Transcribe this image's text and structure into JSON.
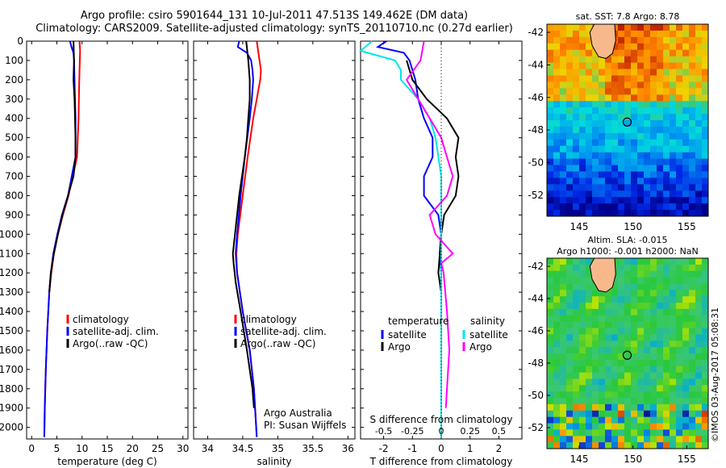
{
  "header": {
    "title_line1": "Argo profile: csiro 5901644_131 10-Jul-2011 47.513S 149.462E (DM data)",
    "title_line2": "Climatology: CARS2009. Satellite-adjusted climatology: synTS_20110710.nc (0.27d earlier)"
  },
  "chart_data": [
    {
      "id": "temperature",
      "type": "line",
      "xlabel": "temperature (deg C)",
      "ylabel": "",
      "xlim": [
        -1,
        31
      ],
      "ylim": [
        2060,
        0
      ],
      "xticks": [
        0,
        5,
        10,
        15,
        20,
        25,
        30
      ],
      "yticks": [
        0,
        100,
        200,
        300,
        400,
        500,
        600,
        700,
        800,
        900,
        1000,
        1100,
        1200,
        1300,
        1400,
        1500,
        1600,
        1700,
        1800,
        1900,
        2000
      ],
      "legend": [
        "climatology",
        "satellite-adj. clim.",
        "Argo(..raw -QC)"
      ],
      "series": [
        {
          "name": "climatology",
          "color": "#ff0000",
          "depth": [
            0,
            50,
            150,
            250,
            400,
            600,
            800,
            900,
            1000,
            1100,
            1200,
            1300,
            1500,
            1700,
            1900,
            2050
          ],
          "values": [
            9.5,
            9.6,
            9.5,
            9.4,
            9.3,
            9.0,
            7.3,
            6.2,
            5.2,
            4.4,
            3.9,
            3.5,
            3.1,
            2.8,
            2.6,
            2.5
          ]
        },
        {
          "name": "satellite-adj. clim.",
          "color": "#0000ff",
          "depth": [
            0,
            30,
            60,
            100,
            200,
            300,
            400,
            600,
            800,
            900,
            1000,
            1100,
            1200,
            1300,
            1500,
            1700,
            1900,
            2050
          ],
          "values": [
            7.6,
            7.9,
            8.3,
            8.4,
            8.5,
            8.6,
            8.7,
            8.7,
            7.2,
            6.0,
            5.1,
            4.3,
            3.8,
            3.5,
            3.1,
            2.8,
            2.6,
            2.5
          ]
        },
        {
          "name": "Argo(..raw -QC)",
          "color": "#000000",
          "depth": [
            0,
            100,
            200,
            300,
            400,
            500,
            600,
            700,
            800,
            900,
            1000,
            1100,
            1200,
            1300
          ],
          "values": [
            8.3,
            8.4,
            8.3,
            8.5,
            8.6,
            8.7,
            8.7,
            8.3,
            7.2,
            6.1,
            5.2,
            4.4,
            3.8,
            3.5
          ]
        }
      ]
    },
    {
      "id": "salinity",
      "type": "line",
      "xlabel": "salinity",
      "xlim": [
        33.8,
        36.1
      ],
      "ylim": [
        2060,
        0
      ],
      "xticks": [
        34,
        34.5,
        35,
        35.5,
        36
      ],
      "legend": [
        "climatology",
        "satellite-adj. clim.",
        "Argo(..raw -QC)"
      ],
      "annotation": [
        "Argo Australia",
        "PI: Susan Wijffels"
      ],
      "series": [
        {
          "name": "climatology",
          "color": "#ff0000",
          "depth": [
            0,
            50,
            100,
            150,
            200,
            300,
            400,
            600,
            800,
            1000,
            1100,
            1200,
            1400,
            1600,
            1800,
            2050
          ],
          "values": [
            34.7,
            34.72,
            34.74,
            34.76,
            34.75,
            34.7,
            34.65,
            34.57,
            34.5,
            34.43,
            34.41,
            34.42,
            34.5,
            34.6,
            34.66,
            34.7
          ]
        },
        {
          "name": "satellite-adj. clim.",
          "color": "#0000ff",
          "depth": [
            0,
            30,
            60,
            100,
            150,
            200,
            300,
            400,
            600,
            800,
            1000,
            1100,
            1200,
            1400,
            1600,
            1800,
            2050
          ],
          "values": [
            34.45,
            34.43,
            34.56,
            34.62,
            34.64,
            34.65,
            34.63,
            34.6,
            34.53,
            34.47,
            34.42,
            34.4,
            34.42,
            34.5,
            34.6,
            34.66,
            34.7
          ]
        },
        {
          "name": "Argo(..raw -QC)",
          "color": "#000000",
          "depth": [
            0,
            100,
            200,
            300,
            400,
            500,
            600,
            700,
            800,
            900,
            1000,
            1100,
            1150,
            1250,
            1400,
            1600,
            1800,
            1900
          ],
          "values": [
            34.55,
            34.58,
            34.6,
            34.6,
            34.58,
            34.56,
            34.53,
            34.49,
            34.45,
            34.42,
            34.39,
            34.36,
            34.37,
            34.4,
            34.47,
            34.56,
            34.64,
            34.66
          ]
        }
      ]
    },
    {
      "id": "difference",
      "type": "line",
      "xlabel": "T difference from climatology",
      "xlabel_top": "S difference from climatology",
      "xlim": [
        -2.8,
        2.8
      ],
      "ylim": [
        2060,
        0
      ],
      "xticks": [
        -2,
        -1,
        0,
        1,
        2
      ],
      "s_ticks": [
        -0.5,
        -0.25,
        0,
        0.25,
        0.5
      ],
      "legend_groups": {
        "temperature": [
          "satellite",
          "Argo"
        ],
        "salinity": [
          "satellite",
          "Argo"
        ]
      },
      "legend_titles": [
        "temperature",
        "salinity"
      ],
      "series": [
        {
          "name": "T satellite",
          "color": "#0000ff",
          "depth": [
            0,
            30,
            60,
            100,
            200,
            300,
            400,
            500,
            600,
            700,
            800,
            900,
            1000,
            1100,
            1200,
            1400,
            1600,
            1800,
            2050
          ],
          "values": [
            -1.9,
            -2.2,
            -1.3,
            -1.1,
            -0.9,
            -0.8,
            -0.6,
            -0.3,
            -0.3,
            -0.6,
            -0.6,
            -0.1,
            0,
            -0.05,
            0,
            0,
            0,
            0,
            0
          ]
        },
        {
          "name": "T Argo",
          "color": "#000000",
          "depth": [
            100,
            200,
            300,
            400,
            500,
            600,
            700,
            800,
            900,
            1000,
            1100,
            1200,
            1300
          ],
          "values": [
            -1.2,
            -1.0,
            -0.5,
            0.2,
            0.6,
            0.5,
            0.6,
            0.5,
            0.1,
            0.0,
            -0.05,
            -0.1,
            0.0
          ]
        },
        {
          "name": "S satellite",
          "color": "#00e6e6",
          "depth": [
            0,
            50,
            100,
            150,
            200,
            300,
            400,
            500,
            700,
            900,
            1100,
            1300,
            1500,
            1700,
            1900,
            2050
          ],
          "values": [
            -0.6,
            -0.7,
            -0.4,
            -0.35,
            -0.35,
            -0.2,
            -0.1,
            -0.05,
            0,
            0,
            0,
            0,
            0,
            0,
            0,
            0
          ]
        },
        {
          "name": "S Argo",
          "color": "#ff00ff",
          "depth": [
            0,
            100,
            200,
            300,
            400,
            500,
            600,
            700,
            800,
            900,
            1000,
            1100,
            1150,
            1200,
            1400,
            1600,
            1800,
            1900
          ],
          "values": [
            -0.15,
            -0.18,
            -0.3,
            -0.2,
            -0.1,
            0,
            0.05,
            0.1,
            0.05,
            -0.1,
            -0.05,
            0.1,
            0.0,
            0.02,
            0.05,
            0.07,
            0.05,
            0.04
          ]
        }
      ]
    },
    {
      "id": "sst_map",
      "type": "heatmap",
      "title": "sat. SST: 7.8 Argo: 8.78",
      "xlim": [
        142,
        157
      ],
      "ylim": [
        -53.3,
        -41.5
      ],
      "xticks": [
        145,
        150,
        155
      ],
      "yticks": [
        -42,
        -44,
        -46,
        -48,
        -50,
        -52
      ],
      "argo_position": {
        "lon": 149.462,
        "lat": -47.513
      }
    },
    {
      "id": "sla_map",
      "type": "heatmap",
      "title_line1": "Altim. SLA: -0.015",
      "title_line2": "Argo h1000: -0.001 h2000: NaN",
      "xlim": [
        142,
        157
      ],
      "ylim": [
        -53.3,
        -41.5
      ],
      "xticks": [
        145,
        150,
        155
      ],
      "yticks": [
        -42,
        -44,
        -46,
        -48,
        -50,
        -52
      ],
      "argo_position": {
        "lon": 149.462,
        "lat": -47.513
      }
    }
  ],
  "footer": {
    "stamp": "©IMOS 03-Aug-2017 05:08:31"
  }
}
